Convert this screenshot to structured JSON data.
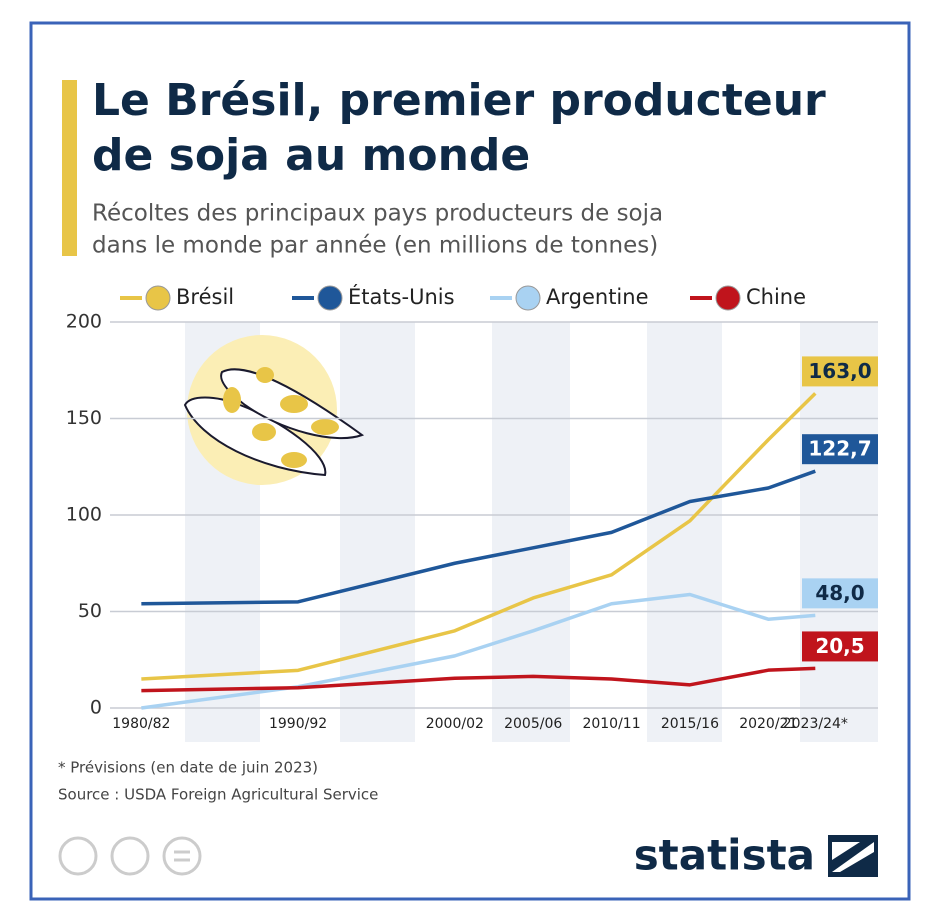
{
  "chart_data": {
    "type": "line",
    "title_line1": "Le Brésil, premier producteur",
    "title_line2": "de soja au monde",
    "subtitle_line1": "Récoltes des principaux pays producteurs de soja",
    "subtitle_line2": "dans le monde par année (en millions de tonnes)",
    "x": [
      1980,
      1990,
      2000,
      2005,
      2010,
      2015,
      2020,
      2023
    ],
    "xlim": [
      1978,
      2027
    ],
    "xticks": [
      {
        "value": 1980,
        "label": "1980/82"
      },
      {
        "value": 1990,
        "label": "1990/92"
      },
      {
        "value": 2000,
        "label": "2000/02"
      },
      {
        "value": 2005,
        "label": "2005/06"
      },
      {
        "value": 2010,
        "label": "2010/11"
      },
      {
        "value": 2015,
        "label": "2015/16"
      },
      {
        "value": 2020,
        "label": "2020/21"
      },
      {
        "value": 2023,
        "label": "2023/24*"
      }
    ],
    "ylim": [
      0,
      200
    ],
    "yticks": [
      0,
      50,
      100,
      150,
      200
    ],
    "grid": true,
    "series": [
      {
        "name": "Brésil",
        "color": "#e8c547",
        "values": [
          15,
          19.5,
          40,
          57,
          69,
          97,
          139,
          163.0
        ],
        "value_labels": [
          null,
          null,
          null,
          null,
          null,
          null,
          null,
          "163,0"
        ]
      },
      {
        "name": "États-Unis",
        "color": "#1f5799",
        "values": [
          54,
          55,
          75,
          83,
          91,
          107,
          114,
          122.7
        ],
        "value_labels": [
          null,
          null,
          null,
          null,
          null,
          null,
          null,
          "122,7"
        ]
      },
      {
        "name": "Argentine",
        "color": "#a9d2f2",
        "values": [
          0,
          11,
          27,
          40,
          54,
          58.8,
          46,
          48.0
        ],
        "value_labels": [
          null,
          null,
          null,
          null,
          null,
          null,
          null,
          "48,0"
        ]
      },
      {
        "name": "Chine",
        "color": "#c0141c",
        "values": [
          9,
          10.5,
          15.4,
          16.4,
          15,
          12,
          19.6,
          20.5
        ],
        "value_labels": [
          null,
          null,
          null,
          null,
          null,
          null,
          null,
          "20,5"
        ]
      }
    ],
    "footnote": "* Prévisions (en date de juin 2023)",
    "source": "Source : USDA Foreign Agricultural Service",
    "brand": "statista"
  }
}
